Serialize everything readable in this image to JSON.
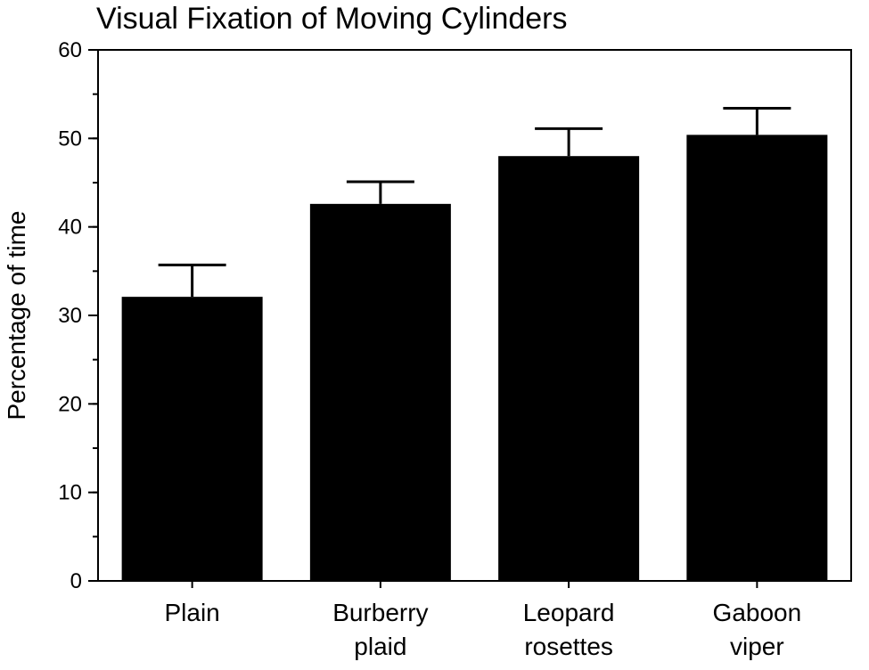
{
  "chart_data": {
    "type": "bar",
    "title": "Visual Fixation of Moving Cylinders",
    "xlabel": "",
    "ylabel": "Percentage of time",
    "categories": [
      [
        "Plain"
      ],
      [
        "Burberry",
        "plaid"
      ],
      [
        "Leopard",
        "rosettes"
      ],
      [
        "Gaboon",
        "viper"
      ]
    ],
    "values": [
      32.1,
      42.6,
      48.0,
      50.4
    ],
    "error_upper": [
      3.6,
      2.5,
      3.1,
      3.0
    ],
    "ylim": [
      0,
      60
    ],
    "yticks": [
      0,
      10,
      20,
      30,
      40,
      50,
      60
    ],
    "yticks_minor_step": 5,
    "grid": false,
    "bar_color": "#000000"
  }
}
